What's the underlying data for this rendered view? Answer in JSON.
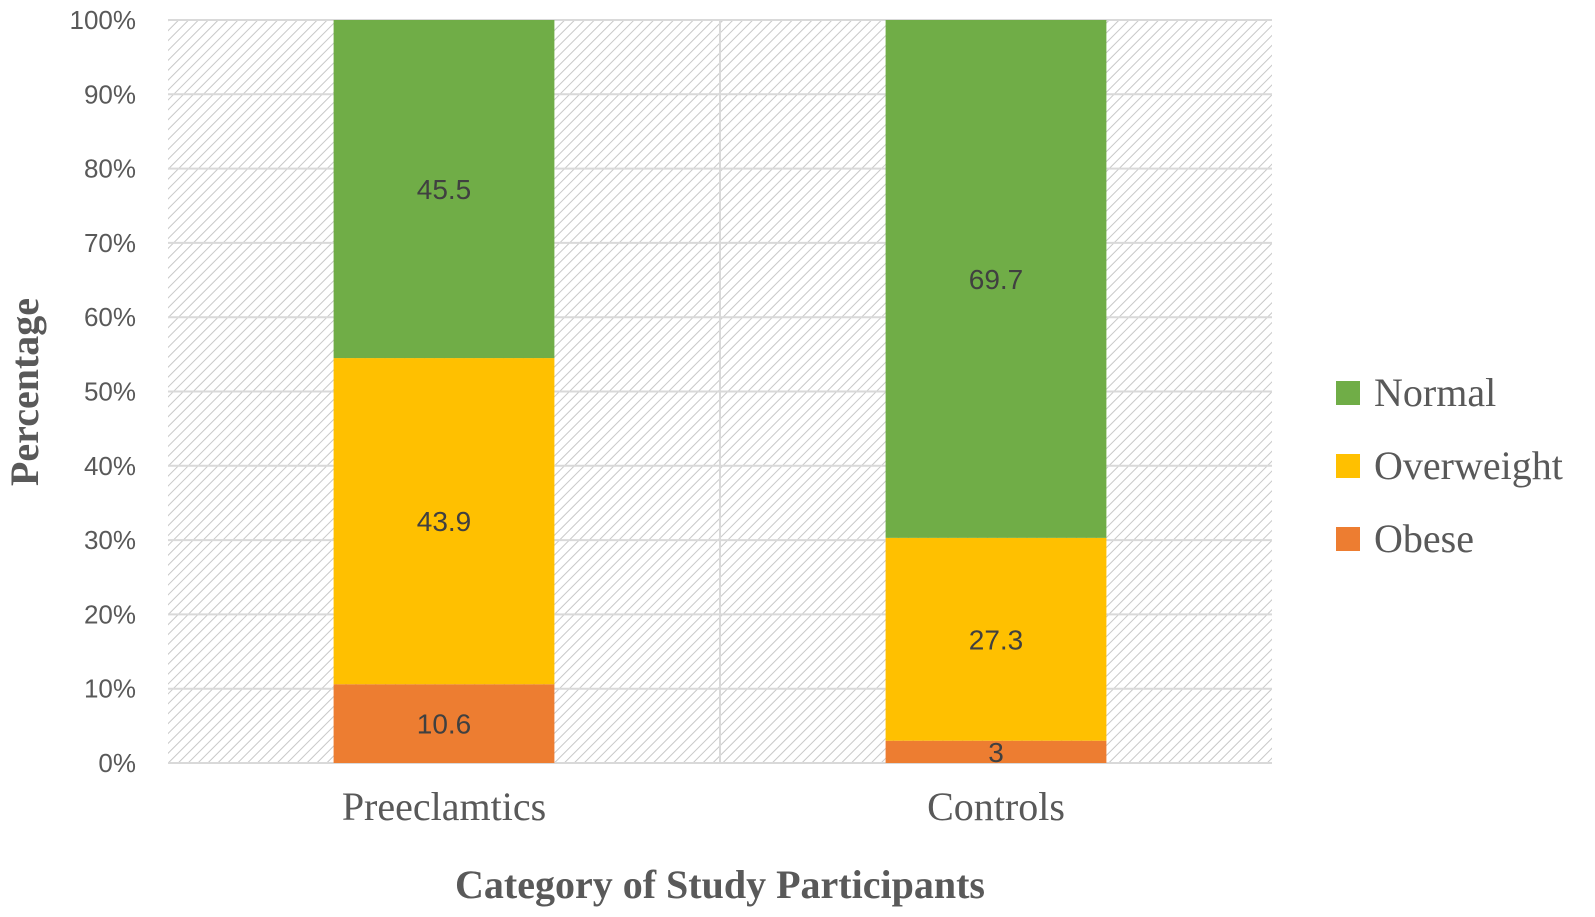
{
  "chart_data": {
    "type": "bar",
    "stacked": true,
    "title": "",
    "xlabel": "Category of Study Participants",
    "ylabel": "Percentage",
    "ylim": [
      0,
      100
    ],
    "yticks": [
      "0%",
      "10%",
      "20%",
      "30%",
      "40%",
      "50%",
      "60%",
      "70%",
      "80%",
      "90%",
      "100%"
    ],
    "categories": [
      "Preeclamtics",
      "Controls"
    ],
    "series": [
      {
        "name": "Obese",
        "color": "#ed7d31",
        "values": [
          10.6,
          3
        ],
        "labels": [
          "10.6",
          "3"
        ]
      },
      {
        "name": "Overweight",
        "color": "#ffc000",
        "values": [
          43.9,
          27.3
        ],
        "labels": [
          "43.9",
          "27.3"
        ]
      },
      {
        "name": "Normal",
        "color": "#70ad47",
        "values": [
          45.5,
          69.7
        ],
        "labels": [
          "45.5",
          "69.7"
        ]
      }
    ],
    "legend": {
      "position": "right",
      "entries": [
        "Normal",
        "Overweight",
        "Obese"
      ]
    },
    "grid": true
  }
}
